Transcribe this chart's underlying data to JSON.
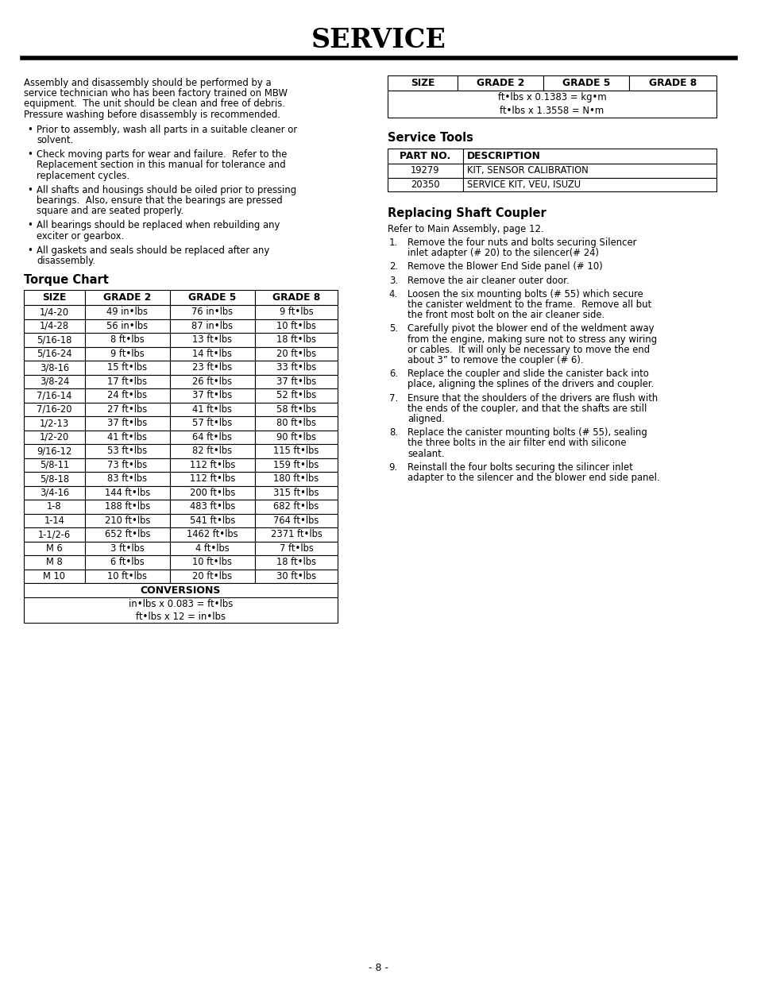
{
  "title": "SERVICE",
  "page_number": "- 8 -",
  "left_para": [
    "Assembly and disassembly should be performed by a",
    "service technician who has been factory trained on MBW",
    "equipment.  The unit should be clean and free of debris.",
    "Pressure washing before disassembly is recommended."
  ],
  "bullets": [
    [
      "Prior to assembly, wash all parts in a suitable cleaner or",
      "solvent."
    ],
    [
      "Check moving parts for wear and failure.  Refer to the",
      "Replacement section in this manual for tolerance and",
      "replacement cycles."
    ],
    [
      "All shafts and housings should be oiled prior to pressing",
      "bearings.  Also, ensure that the bearings are pressed",
      "square and are seated properly."
    ],
    [
      "All bearings should be replaced when rebuilding any",
      "exciter or gearbox."
    ],
    [
      "All gaskets and seals should be replaced after any",
      "disassembly."
    ]
  ],
  "torque_chart_title": "Torque Chart",
  "torque_headers": [
    "SIZE",
    "GRADE 2",
    "GRADE 5",
    "GRADE 8"
  ],
  "torque_rows": [
    [
      "1/4-20",
      "49 in•lbs",
      "76 in•lbs",
      "9 ft•lbs"
    ],
    [
      "1/4-28",
      "56 in•lbs",
      "87 in•lbs",
      "10 ft•lbs"
    ],
    [
      "5/16-18",
      "8 ft•lbs",
      "13 ft•lbs",
      "18 ft•lbs"
    ],
    [
      "5/16-24",
      "9 ft•lbs",
      "14 ft•lbs",
      "20 ft•lbs"
    ],
    [
      "3/8-16",
      "15 ft•lbs",
      "23 ft•lbs",
      "33 ft•lbs"
    ],
    [
      "3/8-24",
      "17 ft•lbs",
      "26 ft•lbs",
      "37 ft•lbs"
    ],
    [
      "7/16-14",
      "24 ft•lbs",
      "37 ft•lbs",
      "52 ft•lbs"
    ],
    [
      "7/16-20",
      "27 ft•lbs",
      "41 ft•lbs",
      "58 ft•lbs"
    ],
    [
      "1/2-13",
      "37 ft•lbs",
      "57 ft•lbs",
      "80 ft•lbs"
    ],
    [
      "1/2-20",
      "41 ft•lbs",
      "64 ft•lbs",
      "90 ft•lbs"
    ],
    [
      "9/16-12",
      "53 ft•lbs",
      "82 ft•lbs",
      "115 ft•lbs"
    ],
    [
      "5/8-11",
      "73 ft•lbs",
      "112 ft•lbs",
      "159 ft•lbs"
    ],
    [
      "5/8-18",
      "83 ft•lbs",
      "112 ft•lbs",
      "180 ft•lbs"
    ],
    [
      "3/4-16",
      "144 ft•lbs",
      "200 ft•lbs",
      "315 ft•lbs"
    ],
    [
      "1-8",
      "188 ft•lbs",
      "483 ft•lbs",
      "682 ft•lbs"
    ],
    [
      "1-14",
      "210 ft•lbs",
      "541 ft•lbs",
      "764 ft•lbs"
    ],
    [
      "1-1/2-6",
      "652 ft•lbs",
      "1462 ft•lbs",
      "2371 ft•lbs"
    ],
    [
      "M 6",
      "3 ft•lbs",
      "4 ft•lbs",
      "7 ft•lbs"
    ],
    [
      "M 8",
      "6 ft•lbs",
      "10 ft•lbs",
      "18 ft•lbs"
    ],
    [
      "M 10",
      "10 ft•lbs",
      "20 ft•lbs",
      "30 ft•lbs"
    ]
  ],
  "conversions_title": "CONVERSIONS",
  "conversions_lines": [
    "in•lbs x 0.083 = ft•lbs",
    "ft•lbs x 12 = in•lbs"
  ],
  "top_right_headers": [
    "SIZE",
    "GRADE 2",
    "GRADE 5",
    "GRADE 8"
  ],
  "top_right_conv": [
    "ft•lbs x 0.1383 = kg•m",
    "ft•lbs x 1.3558 = N•m"
  ],
  "service_tools_title": "Service Tools",
  "service_tools_headers": [
    "PART NO.",
    "DESCRIPTION"
  ],
  "service_tools_rows": [
    [
      "19279",
      "KIT, SENSOR CALIBRATION"
    ],
    [
      "20350",
      "SERVICE KIT, VEU, ISUZU"
    ]
  ],
  "replacing_title": "Replacing Shaft Coupler",
  "replacing_ref": "Refer to Main Assembly, page 12.",
  "steps": [
    [
      "Remove the four nuts and bolts securing Silencer",
      "inlet adapter (# 20) to the silencer(# 24)"
    ],
    [
      "Remove the Blower End Side panel (# 10)"
    ],
    [
      "Remove the air cleaner outer door."
    ],
    [
      "Loosen the six mounting bolts (# 55) which secure",
      "the canister weldment to the frame.  Remove all but",
      "the front most bolt on the air cleaner side."
    ],
    [
      "Carefully pivot the blower end of the weldment away",
      "from the engine, making sure not to stress any wiring",
      "or cables.  It will only be necessary to move the end",
      "about 3” to remove the coupler (# 6)."
    ],
    [
      "Replace the coupler and slide the canister back into",
      "place, aligning the splines of the drivers and coupler."
    ],
    [
      "Ensure that the shoulders of the drivers are flush with",
      "the ends of the coupler, and that the shafts are still",
      "aligned."
    ],
    [
      "Replace the canister mounting bolts (# 55), sealing",
      "the three bolts in the air filter end with silicone",
      "sealant."
    ],
    [
      "Reinstall the four bolts securing the silincer inlet",
      "adapter to the silencer and the blower end side panel."
    ]
  ]
}
